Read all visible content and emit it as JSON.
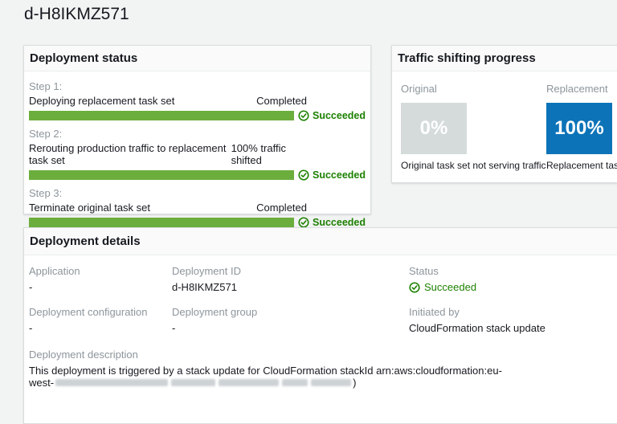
{
  "page": {
    "title": "d-H8IKMZ571"
  },
  "colors": {
    "page_background": "#f2f3f3",
    "text_dark": "#16191f",
    "label_grey": "#8d969c",
    "success_green": "#1d8102",
    "progress_green": "#6cae3d",
    "replacement_blue": "#0c73b8",
    "original_grey": "#d5dbdb"
  },
  "icons": {
    "status_success": "check-circle-icon"
  },
  "deployment_status": {
    "title": "Deployment status",
    "steps": [
      {
        "label": "Step 1:",
        "name": "Deploying replacement task set",
        "status_text": "Completed",
        "progress_percent": 100,
        "result": "Succeeded"
      },
      {
        "label": "Step 2:",
        "name": "Rerouting production traffic to replacement task set",
        "status_text": "100% traffic shifted",
        "progress_percent": 100,
        "result": "Succeeded"
      },
      {
        "label": "Step 3:",
        "name": "Terminate original task set",
        "status_text": "Completed",
        "progress_percent": 100,
        "result": "Succeeded"
      }
    ]
  },
  "traffic_shifting": {
    "title": "Traffic shifting progress",
    "original": {
      "label": "Original",
      "percent": "0%",
      "caption": "Original task set not serving traffic"
    },
    "replacement": {
      "label": "Replacement",
      "percent": "100%",
      "caption": "Replacement task set serving traffic"
    }
  },
  "deployment_details": {
    "title": "Deployment details",
    "fields": [
      {
        "label": "Application",
        "value": "-"
      },
      {
        "label": "Deployment ID",
        "value": "d-H8IKMZ571"
      },
      {
        "label": "Status",
        "value": "Succeeded"
      },
      {
        "label": "Deployment configuration",
        "value": "-"
      },
      {
        "label": "Deployment group",
        "value": "-"
      },
      {
        "label": "Initiated by",
        "value": "CloudFormation stack update"
      }
    ],
    "description": {
      "label": "Deployment description",
      "line1": "This deployment is triggered by a stack update for CloudFormation stackId arn:aws:cloudformation:eu-",
      "line2_prefix": "west-",
      "line2_suffix": ")"
    }
  }
}
